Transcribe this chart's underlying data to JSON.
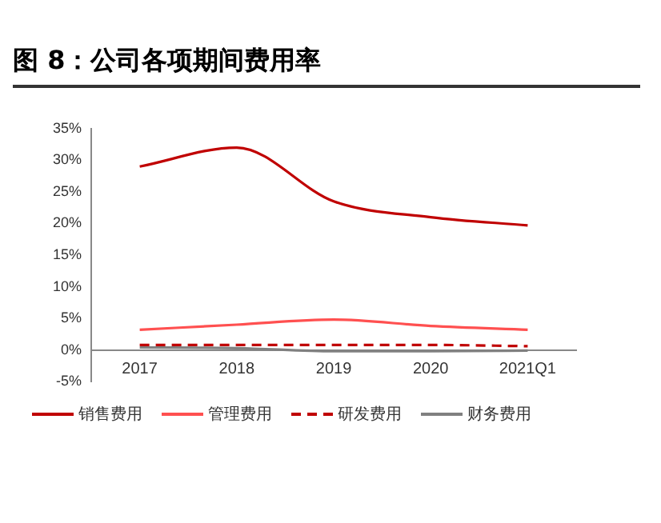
{
  "chart_data": {
    "type": "line",
    "title": "图 8：公司各项期间费用率",
    "categories": [
      "2017",
      "2018",
      "2019",
      "2020",
      "2021Q1"
    ],
    "series": [
      {
        "name": "销售费用",
        "color": "#c00000",
        "line_style": "solid",
        "values": [
          29,
          32,
          23.5,
          21,
          19.7
        ]
      },
      {
        "name": "管理费用",
        "color": "#ff5050",
        "line_style": "solid",
        "values": [
          3.2,
          4,
          4.8,
          3.8,
          3.2
        ]
      },
      {
        "name": "研发费用",
        "color": "#c00000",
        "line_style": "dashed",
        "values": [
          0.8,
          0.8,
          0.8,
          0.8,
          0.6
        ]
      },
      {
        "name": "财务费用",
        "color": "#808080",
        "line_style": "solid",
        "values": [
          0.4,
          0.3,
          -0.2,
          -0.2,
          -0.1
        ]
      }
    ],
    "ylim": [
      -5,
      35
    ],
    "yticks": [
      {
        "value": -5,
        "label": "-5%"
      },
      {
        "value": 0,
        "label": "0%"
      },
      {
        "value": 5,
        "label": "5%"
      },
      {
        "value": 10,
        "label": "10%"
      },
      {
        "value": 15,
        "label": "15%"
      },
      {
        "value": 20,
        "label": "20%"
      },
      {
        "value": 25,
        "label": "25%"
      },
      {
        "value": 30,
        "label": "30%"
      },
      {
        "value": 35,
        "label": "35%"
      }
    ],
    "grid": false,
    "legend": "bottom",
    "marker": "none"
  }
}
